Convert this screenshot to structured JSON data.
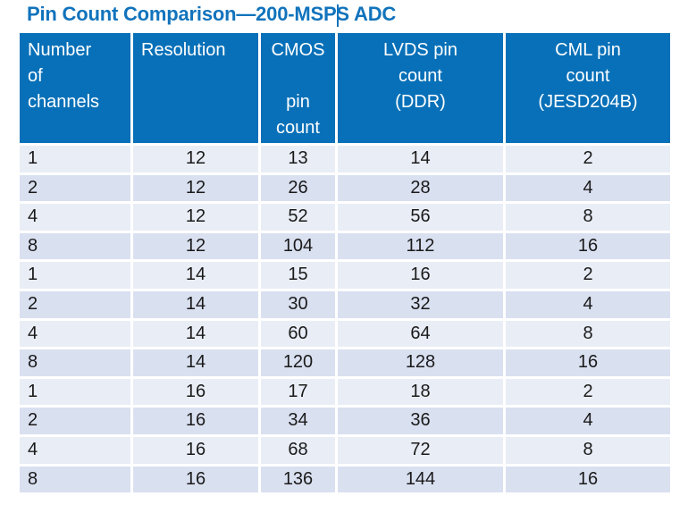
{
  "title": "Pin Count Comparison—200-MSPS ADC",
  "colors": {
    "title-color": "#1173bc",
    "caret-color": "#1173bc",
    "header-bg": "#0870b8",
    "header-text": "#ffffff",
    "row-light": "#e9edf6",
    "row-dark": "#d9e0f0",
    "body-text": "#1a1a1a"
  },
  "table": {
    "headers": [
      "Number\nof\nchannels",
      "Resolution",
      "CMOS\n\npin\ncount",
      "LVDS pin\ncount\n(DDR)",
      "CML pin\ncount\n(JESD204B)"
    ],
    "rows": [
      [
        "1",
        "12",
        "13",
        "14",
        "2"
      ],
      [
        "2",
        "12",
        "26",
        "28",
        "4"
      ],
      [
        "4",
        "12",
        "52",
        "56",
        "8"
      ],
      [
        "8",
        "12",
        "104",
        "112",
        "16"
      ],
      [
        "1",
        "14",
        "15",
        "16",
        "2"
      ],
      [
        "2",
        "14",
        "30",
        "32",
        "4"
      ],
      [
        "4",
        "14",
        "60",
        "64",
        "8"
      ],
      [
        "8",
        "14",
        "120",
        "128",
        "16"
      ],
      [
        "1",
        "16",
        "17",
        "18",
        "2"
      ],
      [
        "2",
        "16",
        "34",
        "36",
        "4"
      ],
      [
        "4",
        "16",
        "68",
        "72",
        "8"
      ],
      [
        "8",
        "16",
        "136",
        "144",
        "16"
      ]
    ]
  }
}
